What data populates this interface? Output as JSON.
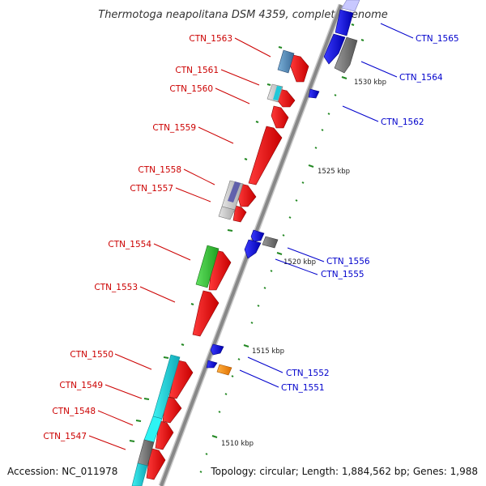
{
  "title": "Thermotoga neapolitana DSM 4359, complete genome",
  "footer": {
    "accession": "Accession: NC_011978",
    "topology": "Topology: circular; Length: 1,884,562 bp; Genes: 1,988"
  },
  "colors": {
    "forward_label": "#cc0000",
    "reverse_label": "#0000cc",
    "backbone": "#888888",
    "tick": "#228822"
  },
  "kbp_labels": [
    "1510 kbp",
    "1515 kbp",
    "1520 kbp",
    "1525 kbp",
    "1530 kbp"
  ],
  "forward_genes": [
    "CTN_1563",
    "CTN_1561",
    "CTN_1560",
    "CTN_1559",
    "CTN_1558",
    "CTN_1557",
    "CTN_1554",
    "CTN_1553",
    "CTN_1550",
    "CTN_1549",
    "CTN_1548",
    "CTN_1547"
  ],
  "reverse_genes": [
    "CTN_1565",
    "CTN_1564",
    "CTN_1562",
    "CTN_1556",
    "CTN_1555",
    "CTN_1552",
    "CTN_1551"
  ]
}
